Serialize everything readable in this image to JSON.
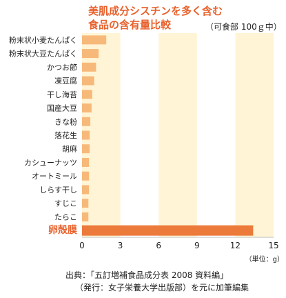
{
  "title_line1": "美肌成分シスチンを多く含む",
  "title_line2": "食品の含有量比較",
  "subtitle": "（可食部 100ｇ中）",
  "unit_label": "（単位：g）",
  "source_line1": "出典：「五訂増補食品成分表 2008 資料編」",
  "source_line2": "（発行：女子栄養大学出版部）を元に加筆編集",
  "colors": {
    "band": "#fff5d6",
    "bar": "#f7b97a",
    "highlight_bar": "#ec7a3a",
    "highlight_text": "#e8612c",
    "title": "#e8612c"
  },
  "chart_data": {
    "type": "bar",
    "orientation": "horizontal",
    "categories": [
      "粉末状小麦たんぱく",
      "粉末状大豆たんぱく",
      "かつお節",
      "凍豆腐",
      "干し海苔",
      "国産大豆",
      "きな粉",
      "落花生",
      "胡麻",
      "カシューナッツ",
      "オートミール",
      "しらす干し",
      "すじこ",
      "たらこ",
      "卵殻膜"
    ],
    "values": [
      1.9,
      1.3,
      1.1,
      0.95,
      0.8,
      0.75,
      0.65,
      0.6,
      0.6,
      0.55,
      0.55,
      0.55,
      0.5,
      0.5,
      13.4
    ],
    "highlight": "卵殻膜",
    "xlim": [
      0,
      15
    ],
    "xticks": [
      0,
      3,
      6,
      9,
      12,
      15
    ],
    "xtick_labels": [
      "0",
      "3",
      "6",
      "9",
      "12",
      "15"
    ],
    "grid": "alternating vertical bands"
  }
}
